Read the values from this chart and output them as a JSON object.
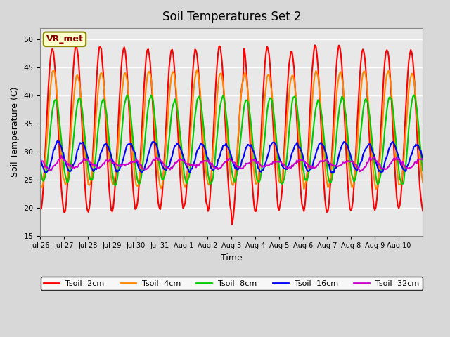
{
  "title": "Soil Temperatures Set 2",
  "xlabel": "Time",
  "ylabel": "Soil Temperature (C)",
  "ylim": [
    15,
    52
  ],
  "yticks": [
    15,
    20,
    25,
    30,
    35,
    40,
    45,
    50
  ],
  "annotation": "VR_met",
  "series": {
    "Tsoil -2cm": {
      "color": "#ff0000",
      "amp": 14.5,
      "base": 34.0,
      "phase": 0.0
    },
    "Tsoil -4cm": {
      "color": "#ff8800",
      "amp": 10.0,
      "base": 34.0,
      "phase": 0.3
    },
    "Tsoil -8cm": {
      "color": "#00cc00",
      "amp": 7.5,
      "base": 32.0,
      "phase": 0.8
    },
    "Tsoil -16cm": {
      "color": "#0000ff",
      "amp": 2.5,
      "base": 29.0,
      "phase": 1.5
    },
    "Tsoil -32cm": {
      "color": "#cc00cc",
      "amp": 0.7,
      "base": 27.8,
      "phase": 2.5
    }
  },
  "n_points": 384,
  "days": 16,
  "plot_bg": "#e8e8e8",
  "tick_labels": [
    "Jul 26",
    "Jul 27",
    "Jul 28",
    "Jul 29",
    "Jul 30",
    "Jul 31",
    "Aug 1",
    "Aug 2",
    "Aug 3",
    "Aug 4",
    "Aug 5",
    "Aug 6",
    "Aug 7",
    "Aug 8",
    "Aug 9",
    "Aug 10"
  ]
}
